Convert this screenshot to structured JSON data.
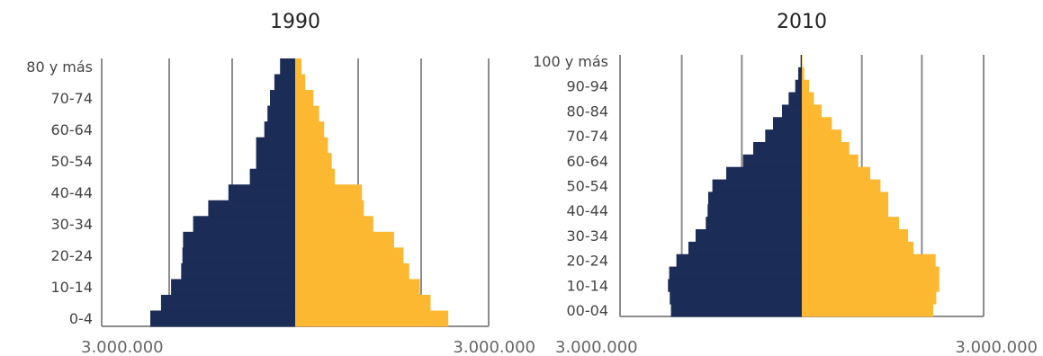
{
  "colors": {
    "male": "#1b2d57",
    "female": "#fcb830",
    "grid": "#8c8c8c"
  },
  "chart_data": [
    {
      "type": "bar",
      "subtype": "population-pyramid",
      "title": "1990",
      "categories": [
        "0-4",
        "5-9",
        "10-14",
        "15-19",
        "20-24",
        "25-29",
        "30-34",
        "35-39",
        "40-44",
        "45-49",
        "50-54",
        "55-59",
        "60-64",
        "65-69",
        "70-74",
        "75-79",
        "80 y más"
      ],
      "series": [
        {
          "values": [
            -2300000,
            -2130000,
            -1970000,
            -1810000,
            -1790000,
            -1780000,
            -1620000,
            -1380000,
            -1060000,
            -720000,
            -620000,
            -620000,
            -490000,
            -440000,
            -400000,
            -330000,
            -240000
          ]
        },
        {
          "values": [
            2430000,
            2150000,
            1980000,
            1810000,
            1720000,
            1570000,
            1240000,
            1090000,
            1060000,
            630000,
            580000,
            520000,
            460000,
            380000,
            290000,
            160000,
            100000
          ]
        }
      ],
      "tick_labels": [
        "0-4",
        "10-14",
        "20-24",
        "30-34",
        "40-44",
        "50-54",
        "60-64",
        "70-74",
        "80 y más"
      ],
      "xlim": [
        -3000000,
        3000000
      ],
      "x_tick_labels": [
        "3.000.000",
        "3.000.000"
      ],
      "grid": true
    },
    {
      "type": "bar",
      "subtype": "population-pyramid",
      "title": "2010",
      "categories": [
        "00-04",
        "05-09",
        "10-14",
        "15-19",
        "20-24",
        "25-29",
        "30-34",
        "35-39",
        "40-44",
        "45-49",
        "50-54",
        "55-59",
        "60-64",
        "65-69",
        "70-74",
        "75-79",
        "80-84",
        "85-89",
        "90-94",
        "95-99",
        "100 y más"
      ],
      "series": [
        {
          "values": [
            -2180000,
            -2200000,
            -2230000,
            -2210000,
            -2090000,
            -1890000,
            -1770000,
            -1600000,
            -1570000,
            -1560000,
            -1490000,
            -1260000,
            -980000,
            -810000,
            -610000,
            -480000,
            -330000,
            -220000,
            -110000,
            -60000,
            -20000
          ]
        },
        {
          "values": [
            2190000,
            2240000,
            2290000,
            2290000,
            2230000,
            1860000,
            1770000,
            1620000,
            1440000,
            1440000,
            1310000,
            1140000,
            940000,
            790000,
            660000,
            500000,
            330000,
            200000,
            120000,
            40000,
            10000
          ]
        }
      ],
      "tick_labels": [
        "00-04",
        "10-14",
        "20-24",
        "30-34",
        "40-44",
        "50-54",
        "60-64",
        "70-74",
        "80-84",
        "90-94",
        "100 y más"
      ],
      "xlim": [
        -3000000,
        3000000
      ],
      "x_tick_labels": [
        "3.000.000",
        "3.000.000"
      ],
      "grid": true
    }
  ]
}
